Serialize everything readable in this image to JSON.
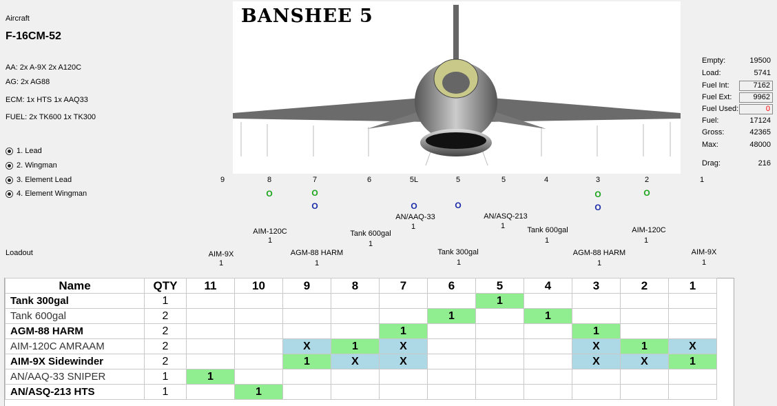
{
  "aircraft": {
    "label": "Aircraft",
    "name": "F-16CM-52",
    "aa": "AA: 2x A-9X 2x A120C",
    "ag": "AG: 2x AG88",
    "ecm": "ECM: 1x HTS 1x AAQ33",
    "fuel": "FUEL: 2x TK600 1x TK300",
    "callsign": "BANSHEE 5"
  },
  "positions": [
    "1. Lead",
    "2. Wingman",
    "3. Element Lead",
    "4. Element Wingman"
  ],
  "loadout_label": "Loadout",
  "stats": {
    "empty_label": "Empty:",
    "empty": "19500",
    "load_label": "Load:",
    "load": "5741",
    "fuel_int_label": "Fuel Int:",
    "fuel_int": "7162",
    "fuel_ext_label": "Fuel Ext:",
    "fuel_ext": "9962",
    "fuel_used_label": "Fuel Used:",
    "fuel_used": "0",
    "fuel_label": "Fuel:",
    "fuel": "17124",
    "gross_label": "Gross:",
    "gross": "42365",
    "max_label": "Max:",
    "max": "48000",
    "drag_label": "Drag:",
    "drag": "216"
  },
  "stations_row": [
    "9",
    "8",
    "7",
    "6",
    "5L",
    "5",
    "5",
    "4",
    "3",
    "2",
    "1"
  ],
  "markers": {
    "o": "O"
  },
  "stores": {
    "s8": {
      "name": "AIM-120C",
      "qty": "1"
    },
    "s9": {
      "name": "AIM-9X",
      "qty": "1"
    },
    "s7": {
      "name": "AGM-88 HARM",
      "qty": "1"
    },
    "s6": {
      "name": "Tank 600gal",
      "qty": "1"
    },
    "s5l": {
      "name": "AN/AAQ-33",
      "qty": "1"
    },
    "s5": {
      "name": "Tank 300gal",
      "qty": "1"
    },
    "s5r": {
      "name": "AN/ASQ-213",
      "qty": "1"
    },
    "s4": {
      "name": "Tank 600gal",
      "qty": "1"
    },
    "s3": {
      "name": "AGM-88 HARM",
      "qty": "1"
    },
    "s2": {
      "name": "AIM-120C",
      "qty": "1"
    },
    "s1": {
      "name": "AIM-9X",
      "qty": "1"
    }
  },
  "table": {
    "headers": [
      "Name",
      "QTY",
      "11",
      "10",
      "9",
      "8",
      "7",
      "6",
      "5",
      "4",
      "3",
      "2",
      "1"
    ],
    "rows": [
      {
        "name": "Tank 300gal",
        "qty": "1",
        "cells": [
          "",
          "",
          "",
          "",
          "",
          "",
          "1",
          "",
          "",
          "",
          ""
        ]
      },
      {
        "name": "Tank 600gal",
        "qty": "2",
        "cells": [
          "",
          "",
          "",
          "",
          "",
          "1",
          "",
          "1",
          "",
          "",
          ""
        ]
      },
      {
        "name": "AGM-88 HARM",
        "qty": "2",
        "cells": [
          "",
          "",
          "",
          "",
          "1",
          "",
          "",
          "",
          "1",
          "",
          ""
        ]
      },
      {
        "name": "AIM-120C AMRAAM",
        "qty": "2",
        "cells": [
          "",
          "",
          "X",
          "1",
          "X",
          "",
          "",
          "",
          "X",
          "1",
          "X"
        ]
      },
      {
        "name": "AIM-9X Sidewinder",
        "qty": "2",
        "cells": [
          "",
          "",
          "1",
          "X",
          "X",
          "",
          "",
          "",
          "X",
          "X",
          "1"
        ]
      },
      {
        "name": "AN/AAQ-33 SNIPER",
        "qty": "1",
        "cells": [
          "1",
          "",
          "",
          "",
          "",
          "",
          "",
          "",
          "",
          "",
          ""
        ]
      },
      {
        "name": "AN/ASQ-213 HTS",
        "qty": "1",
        "cells": [
          "",
          "1",
          "",
          "",
          "",
          "",
          "",
          "",
          "",
          "",
          ""
        ]
      }
    ]
  },
  "colors": {
    "selected": "#90ee90",
    "available": "#add8e6",
    "fuel_used": "#ff0000"
  }
}
